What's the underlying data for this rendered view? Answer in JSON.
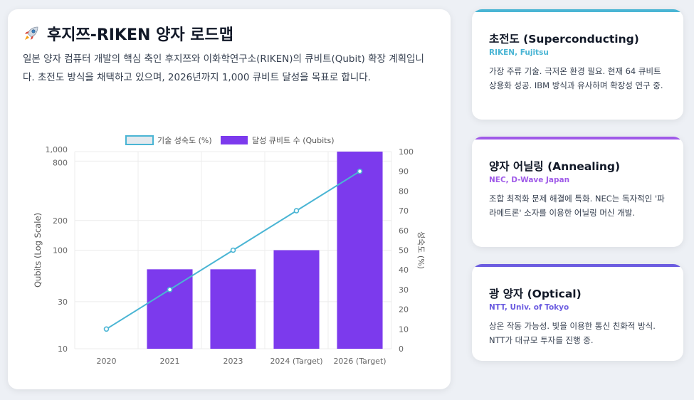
{
  "main": {
    "title": "후지쯔-RIKEN 양자 로드맵",
    "description": "일본 양자 컴퓨터 개발의 핵심 축인 후지쯔와 이화학연구소(RIKEN)의 큐비트(Qubit) 확장 계획입니다. 초전도 방식을 채택하고 있으며, 2026년까지 1,000 큐비트 달성을 목표로 합니다.",
    "rocket_icon": "rocket-icon"
  },
  "chart_data": {
    "type": "bar",
    "categories": [
      "2020",
      "2021",
      "2023",
      "2024 (Target)",
      "2026 (Target)"
    ],
    "series": [
      {
        "name": "달성 큐비트 수 (Qubits)",
        "kind": "bar",
        "axis": "left",
        "values": [
          null,
          64,
          64,
          100,
          1000
        ],
        "color": "#7c3aed"
      },
      {
        "name": "기술 성숙도 (%)",
        "kind": "line",
        "axis": "right",
        "values": [
          10,
          30,
          50,
          70,
          90
        ],
        "color": "#4ab5d4"
      }
    ],
    "ylabel": "Qubits (Log Scale)",
    "ylabel_right": "성숙도 (%)",
    "y_scale": "log",
    "ylim": [
      10,
      1000
    ],
    "y_ticks": [
      "10",
      "30",
      "100",
      "200",
      "800",
      "1,000"
    ],
    "y_tick_values": [
      10,
      30,
      100,
      200,
      800,
      1000
    ],
    "ylim_right": [
      0,
      100
    ],
    "y_ticks_right": [
      "0",
      "10",
      "20",
      "30",
      "40",
      "50",
      "60",
      "70",
      "80",
      "90",
      "100"
    ],
    "legend": [
      "기술 성숙도 (%)",
      "달성 큐비트 수 (Qubits)"
    ],
    "legend_position": "top"
  },
  "cards": [
    {
      "title": "초전도 (Superconducting)",
      "org": "RIKEN, Fujitsu",
      "text": "가장 주류 기술. 극저온 환경 필요. 현재 64 큐비트 상용화 성공. IBM 방식과 유사하며 확장성 연구 중.",
      "accent": "#4ab5d4"
    },
    {
      "title": "양자 어닐링 (Annealing)",
      "org": "NEC, D-Wave Japan",
      "text": "조합 최적화 문제 해결에 특화. NEC는 독자적인 '파라메트론' 소자를 이용한 어닐링 머신 개발.",
      "accent": "#9f5ae8"
    },
    {
      "title": "광 양자 (Optical)",
      "org": "NTT, Univ. of Tokyo",
      "text": "상온 작동 가능성. 빛을 이용한 통신 친화적 방식. NTT가 대규모 투자를 진행 중.",
      "accent": "#6b5ce0"
    }
  ]
}
